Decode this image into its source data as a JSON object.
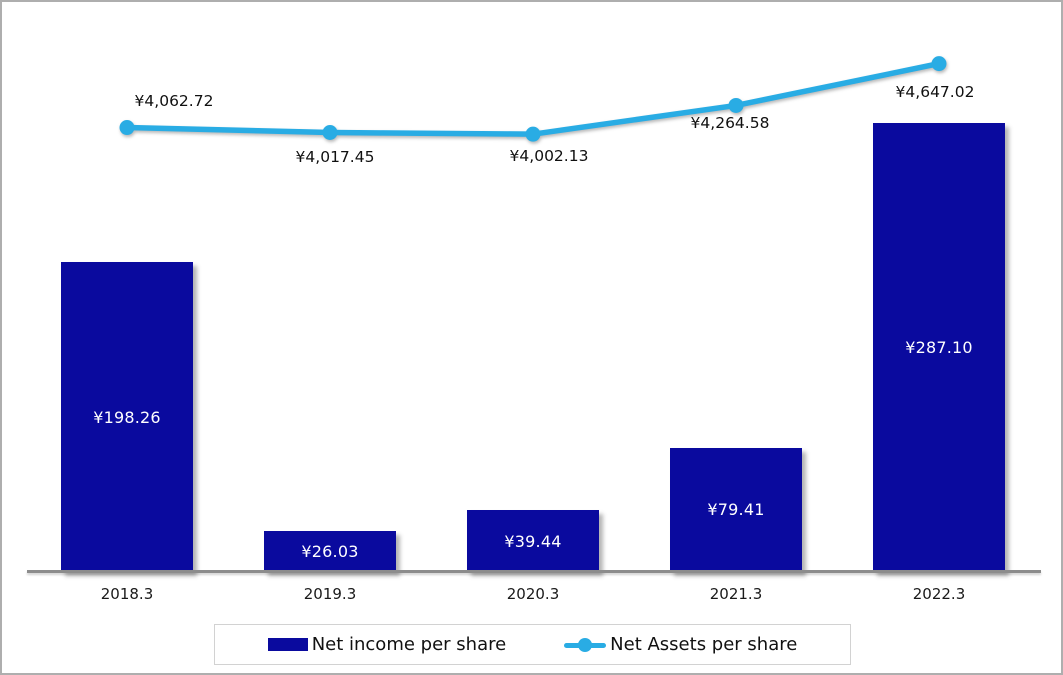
{
  "chart_data": {
    "type": "bar",
    "categories": [
      "2018.3",
      "2019.3",
      "2020.3",
      "2021.3",
      "2022.3"
    ],
    "series": [
      {
        "name": "Net income per share",
        "render": "bar",
        "axis": "primary",
        "values": [
          198.26,
          26.03,
          39.44,
          79.41,
          287.1
        ],
        "labels": [
          "¥198.26",
          "¥26.03",
          "¥39.44",
          "¥79.41",
          "¥287.10"
        ],
        "color": "#0a0a9e"
      },
      {
        "name": "Net Assets per share",
        "render": "line",
        "axis": "secondary",
        "values": [
          4062.72,
          4017.45,
          4002.13,
          4264.58,
          4647.02
        ],
        "labels": [
          "¥4,062.72",
          "¥4,017.45",
          "¥4,002.13",
          "¥4,264.58",
          "¥4,647.02"
        ],
        "color": "#29ace4"
      }
    ],
    "title": "",
    "xlabel": "",
    "ylabel": "",
    "primary_ylim": [
      0,
      350
    ],
    "secondary_ylim": [
      0,
      5000
    ],
    "grid": false,
    "legend_position": "bottom"
  }
}
